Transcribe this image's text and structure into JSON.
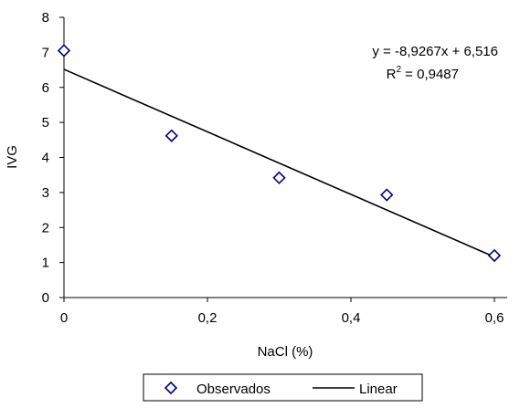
{
  "chart_data": {
    "type": "scatter",
    "title": "",
    "xlabel": "NaCl (%)",
    "ylabel": "IVG",
    "xlim": [
      0,
      0.6
    ],
    "ylim": [
      0,
      8
    ],
    "x_ticks": [
      "0",
      "0,2",
      "0,4",
      "0,6"
    ],
    "y_ticks": [
      "0",
      "1",
      "2",
      "3",
      "4",
      "5",
      "6",
      "7",
      "8"
    ],
    "grid": false,
    "legend_position": "bottom",
    "series": [
      {
        "name": "Observados",
        "marker": "diamond",
        "color": "#000080",
        "x": [
          0,
          0.15,
          0.3,
          0.45,
          0.6
        ],
        "y": [
          7.05,
          4.62,
          3.42,
          2.93,
          1.2
        ]
      },
      {
        "name": "Linear",
        "kind": "trendline",
        "color": "#000000",
        "slope": -8.9267,
        "intercept": 6.516
      }
    ],
    "annotations": {
      "equation": "y = -8,9267x + 6,516",
      "r2_label": "R",
      "r2_sup": "2",
      "r2_value": " = 0,9487"
    }
  }
}
